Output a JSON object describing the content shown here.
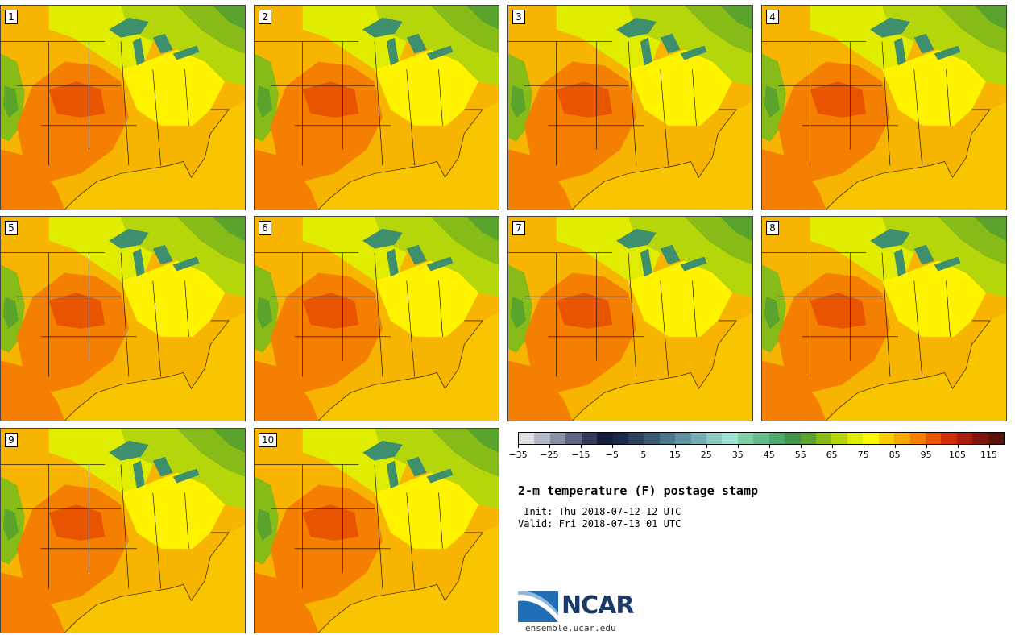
{
  "stamps": [
    {
      "label": "1"
    },
    {
      "label": "2"
    },
    {
      "label": "3"
    },
    {
      "label": "4"
    },
    {
      "label": "5"
    },
    {
      "label": "6"
    },
    {
      "label": "7"
    },
    {
      "label": "8"
    },
    {
      "label": "9"
    },
    {
      "label": "10"
    }
  ],
  "colorbar": {
    "colors": [
      "#dde0e3",
      "#b5b8c6",
      "#8c8fa6",
      "#5f6580",
      "#333b59",
      "#141c38",
      "#1a2a4a",
      "#2a425e",
      "#3a5a72",
      "#4d7688",
      "#5f92a0",
      "#74aeb2",
      "#8ccac2",
      "#9fe3d2",
      "#7fcfa8",
      "#66bd8b",
      "#4fa86e",
      "#3f9448",
      "#5aa32c",
      "#86bb18",
      "#b4d60a",
      "#e0ec00",
      "#fff900",
      "#f9cc00",
      "#f7a800",
      "#f47f00",
      "#e85400",
      "#cf2f04",
      "#a81e0a",
      "#7d150d",
      "#5c1208"
    ],
    "min": -35,
    "max": 120,
    "ticks": [
      -35,
      -25,
      -15,
      -5,
      5,
      15,
      25,
      35,
      45,
      55,
      65,
      75,
      85,
      95,
      105,
      115
    ],
    "tick_labels": [
      "−35",
      "−25",
      "−15",
      "−5",
      "5",
      "15",
      "25",
      "35",
      "45",
      "55",
      "65",
      "75",
      "85",
      "95",
      "105",
      "115"
    ]
  },
  "title": "2-m temperature (F) postage stamp",
  "init": " Init: Thu 2018-07-12 12 UTC",
  "valid": "Valid: Fri 2018-07-13 01 UTC",
  "logo": {
    "text": "NCAR"
  },
  "site": "ensemble.ucar.edu",
  "colors": {
    "lake": "#3d8f6e",
    "land_hot": "#f47f00",
    "land_warm": "#f9cc00",
    "ocean": "#f9c400",
    "north": "#b4d60a"
  }
}
